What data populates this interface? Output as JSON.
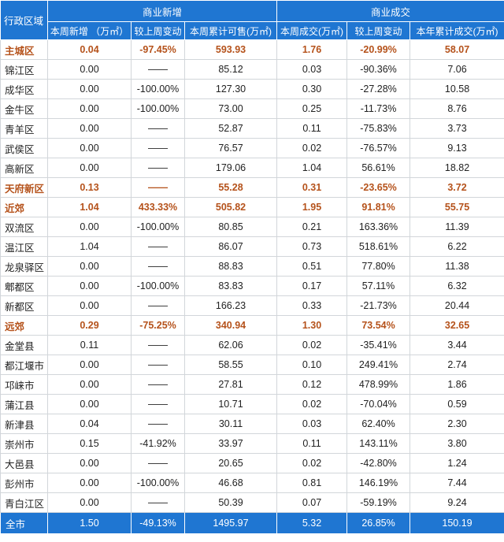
{
  "header": {
    "region": "行政区域",
    "group_new": "商业新增",
    "group_deal": "商业成交",
    "sub": [
      "本周新增 （万㎡）",
      "较上周变动",
      "本周累计可售(万㎡)",
      "本周成交(万㎡)",
      "较上周变动",
      "本年累计成交(万㎡)"
    ]
  },
  "rows": [
    {
      "name": "主城区",
      "hl": true,
      "cells": [
        "0.04",
        "-97.45%",
        "593.93",
        "1.76",
        "-20.99%",
        "58.07"
      ]
    },
    {
      "name": "锦江区",
      "hl": false,
      "cells": [
        "0.00",
        "——",
        "85.12",
        "0.03",
        "-90.36%",
        "7.06"
      ]
    },
    {
      "name": "成华区",
      "hl": false,
      "cells": [
        "0.00",
        "-100.00%",
        "127.30",
        "0.30",
        "-27.28%",
        "10.58"
      ]
    },
    {
      "name": "金牛区",
      "hl": false,
      "cells": [
        "0.00",
        "-100.00%",
        "73.00",
        "0.25",
        "-11.73%",
        "8.76"
      ]
    },
    {
      "name": "青羊区",
      "hl": false,
      "cells": [
        "0.00",
        "——",
        "52.87",
        "0.11",
        "-75.83%",
        "3.73"
      ]
    },
    {
      "name": "武侯区",
      "hl": false,
      "cells": [
        "0.00",
        "——",
        "76.57",
        "0.02",
        "-76.57%",
        "9.13"
      ]
    },
    {
      "name": "高新区",
      "hl": false,
      "cells": [
        "0.00",
        "——",
        "179.06",
        "1.04",
        "56.61%",
        "18.82"
      ]
    },
    {
      "name": "天府新区",
      "hl": true,
      "cells": [
        "0.13",
        "——",
        "55.28",
        "0.31",
        "-23.65%",
        "3.72"
      ]
    },
    {
      "name": "近郊",
      "hl": true,
      "cells": [
        "1.04",
        "433.33%",
        "505.82",
        "1.95",
        "91.81%",
        "55.75"
      ]
    },
    {
      "name": "双流区",
      "hl": false,
      "cells": [
        "0.00",
        "-100.00%",
        "80.85",
        "0.21",
        "163.36%",
        "11.39"
      ]
    },
    {
      "name": "温江区",
      "hl": false,
      "cells": [
        "1.04",
        "——",
        "86.07",
        "0.73",
        "518.61%",
        "6.22"
      ]
    },
    {
      "name": "龙泉驿区",
      "hl": false,
      "cells": [
        "0.00",
        "——",
        "88.83",
        "0.51",
        "77.80%",
        "11.38"
      ]
    },
    {
      "name": "郫都区",
      "hl": false,
      "cells": [
        "0.00",
        "-100.00%",
        "83.83",
        "0.17",
        "57.11%",
        "6.32"
      ]
    },
    {
      "name": "新都区",
      "hl": false,
      "cells": [
        "0.00",
        "——",
        "166.23",
        "0.33",
        "-21.73%",
        "20.44"
      ]
    },
    {
      "name": "远郊",
      "hl": true,
      "cells": [
        "0.29",
        "-75.25%",
        "340.94",
        "1.30",
        "73.54%",
        "32.65"
      ]
    },
    {
      "name": "金堂县",
      "hl": false,
      "cells": [
        "0.11",
        "——",
        "62.06",
        "0.02",
        "-35.41%",
        "3.44"
      ]
    },
    {
      "name": "都江堰市",
      "hl": false,
      "cells": [
        "0.00",
        "——",
        "58.55",
        "0.10",
        "249.41%",
        "2.74"
      ]
    },
    {
      "name": "邛崃市",
      "hl": false,
      "cells": [
        "0.00",
        "——",
        "27.81",
        "0.12",
        "478.99%",
        "1.86"
      ]
    },
    {
      "name": "蒲江县",
      "hl": false,
      "cells": [
        "0.00",
        "——",
        "10.71",
        "0.02",
        "-70.04%",
        "0.59"
      ]
    },
    {
      "name": "新津县",
      "hl": false,
      "cells": [
        "0.04",
        "——",
        "30.11",
        "0.03",
        "62.40%",
        "2.30"
      ]
    },
    {
      "name": "崇州市",
      "hl": false,
      "cells": [
        "0.15",
        "-41.92%",
        "33.97",
        "0.11",
        "143.11%",
        "3.80"
      ]
    },
    {
      "name": "大邑县",
      "hl": false,
      "cells": [
        "0.00",
        "——",
        "20.65",
        "0.02",
        "-42.80%",
        "1.24"
      ]
    },
    {
      "name": "彭州市",
      "hl": false,
      "cells": [
        "0.00",
        "-100.00%",
        "46.68",
        "0.81",
        "146.19%",
        "7.44"
      ]
    },
    {
      "name": "青白江区",
      "hl": false,
      "cells": [
        "0.00",
        "——",
        "50.39",
        "0.07",
        "-59.19%",
        "9.24"
      ]
    }
  ],
  "total": {
    "name": "全市",
    "cells": [
      "1.50",
      "-49.13%",
      "1495.97",
      "5.32",
      "26.85%",
      "150.19"
    ]
  },
  "colors": {
    "header_bg": "#1f76d2",
    "highlight_text": "#b5521b"
  }
}
